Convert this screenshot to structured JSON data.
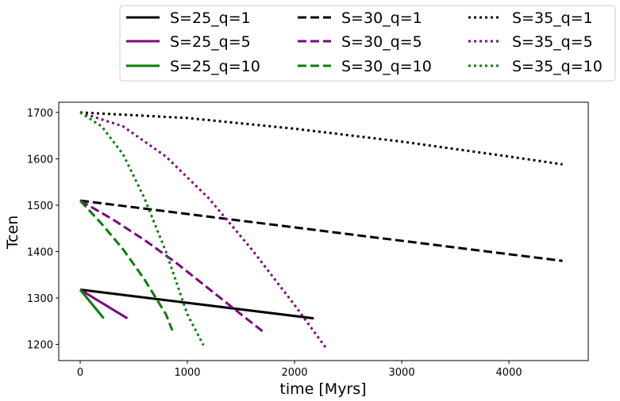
{
  "chart_data": {
    "type": "line",
    "title": "",
    "xlabel": "time [Myrs]",
    "ylabel": "Tcen",
    "xlim": [
      -200,
      4740
    ],
    "ylim": [
      1165,
      1722
    ],
    "xticks": [
      0,
      1000,
      2000,
      3000,
      4000
    ],
    "yticks": [
      1200,
      1300,
      1400,
      1500,
      1600,
      1700
    ],
    "grid": false,
    "legend_position": "top, above plot, 3 columns",
    "colors": {
      "black": "#000000",
      "purple": "#800080",
      "green": "#008000"
    },
    "series": [
      {
        "name": "S=25_q=1",
        "color": "#000000",
        "dash": "solid",
        "x": [
          0,
          2180
        ],
        "y": [
          1318,
          1256
        ]
      },
      {
        "name": "S=25_q=5",
        "color": "#800080",
        "dash": "solid",
        "x": [
          0,
          440
        ],
        "y": [
          1318,
          1256
        ]
      },
      {
        "name": "S=25_q=10",
        "color": "#008000",
        "dash": "solid",
        "x": [
          0,
          220
        ],
        "y": [
          1318,
          1256
        ]
      },
      {
        "name": "S=30_q=1",
        "color": "#000000",
        "dash": "dashed",
        "x": [
          0,
          4500
        ],
        "y": [
          1510,
          1380
        ]
      },
      {
        "name": "S=30_q=5",
        "color": "#800080",
        "dash": "dashed",
        "x": [
          0,
          300,
          600,
          900,
          1200,
          1500,
          1720
        ],
        "y": [
          1510,
          1470,
          1425,
          1375,
          1320,
          1265,
          1225
        ]
      },
      {
        "name": "S=30_q=10",
        "color": "#008000",
        "dash": "dashed",
        "x": [
          0,
          200,
          400,
          600,
          800,
          860
        ],
        "y": [
          1510,
          1460,
          1405,
          1340,
          1265,
          1230
        ]
      },
      {
        "name": "S=35_q=1",
        "color": "#000000",
        "dash": "dotted",
        "x": [
          0,
          1000,
          2000,
          3000,
          4000,
          4500
        ],
        "y": [
          1700,
          1688,
          1665,
          1637,
          1605,
          1588
        ]
      },
      {
        "name": "S=35_q=5",
        "color": "#800080",
        "dash": "dotted",
        "x": [
          0,
          400,
          800,
          1200,
          1600,
          2000,
          2300
        ],
        "y": [
          1700,
          1670,
          1605,
          1515,
          1405,
          1285,
          1190
        ]
      },
      {
        "name": "S=35_q=10",
        "color": "#008000",
        "dash": "dotted",
        "x": [
          0,
          200,
          400,
          600,
          800,
          1000,
          1150
        ],
        "y": [
          1700,
          1670,
          1610,
          1515,
          1400,
          1265,
          1198
        ]
      }
    ]
  }
}
